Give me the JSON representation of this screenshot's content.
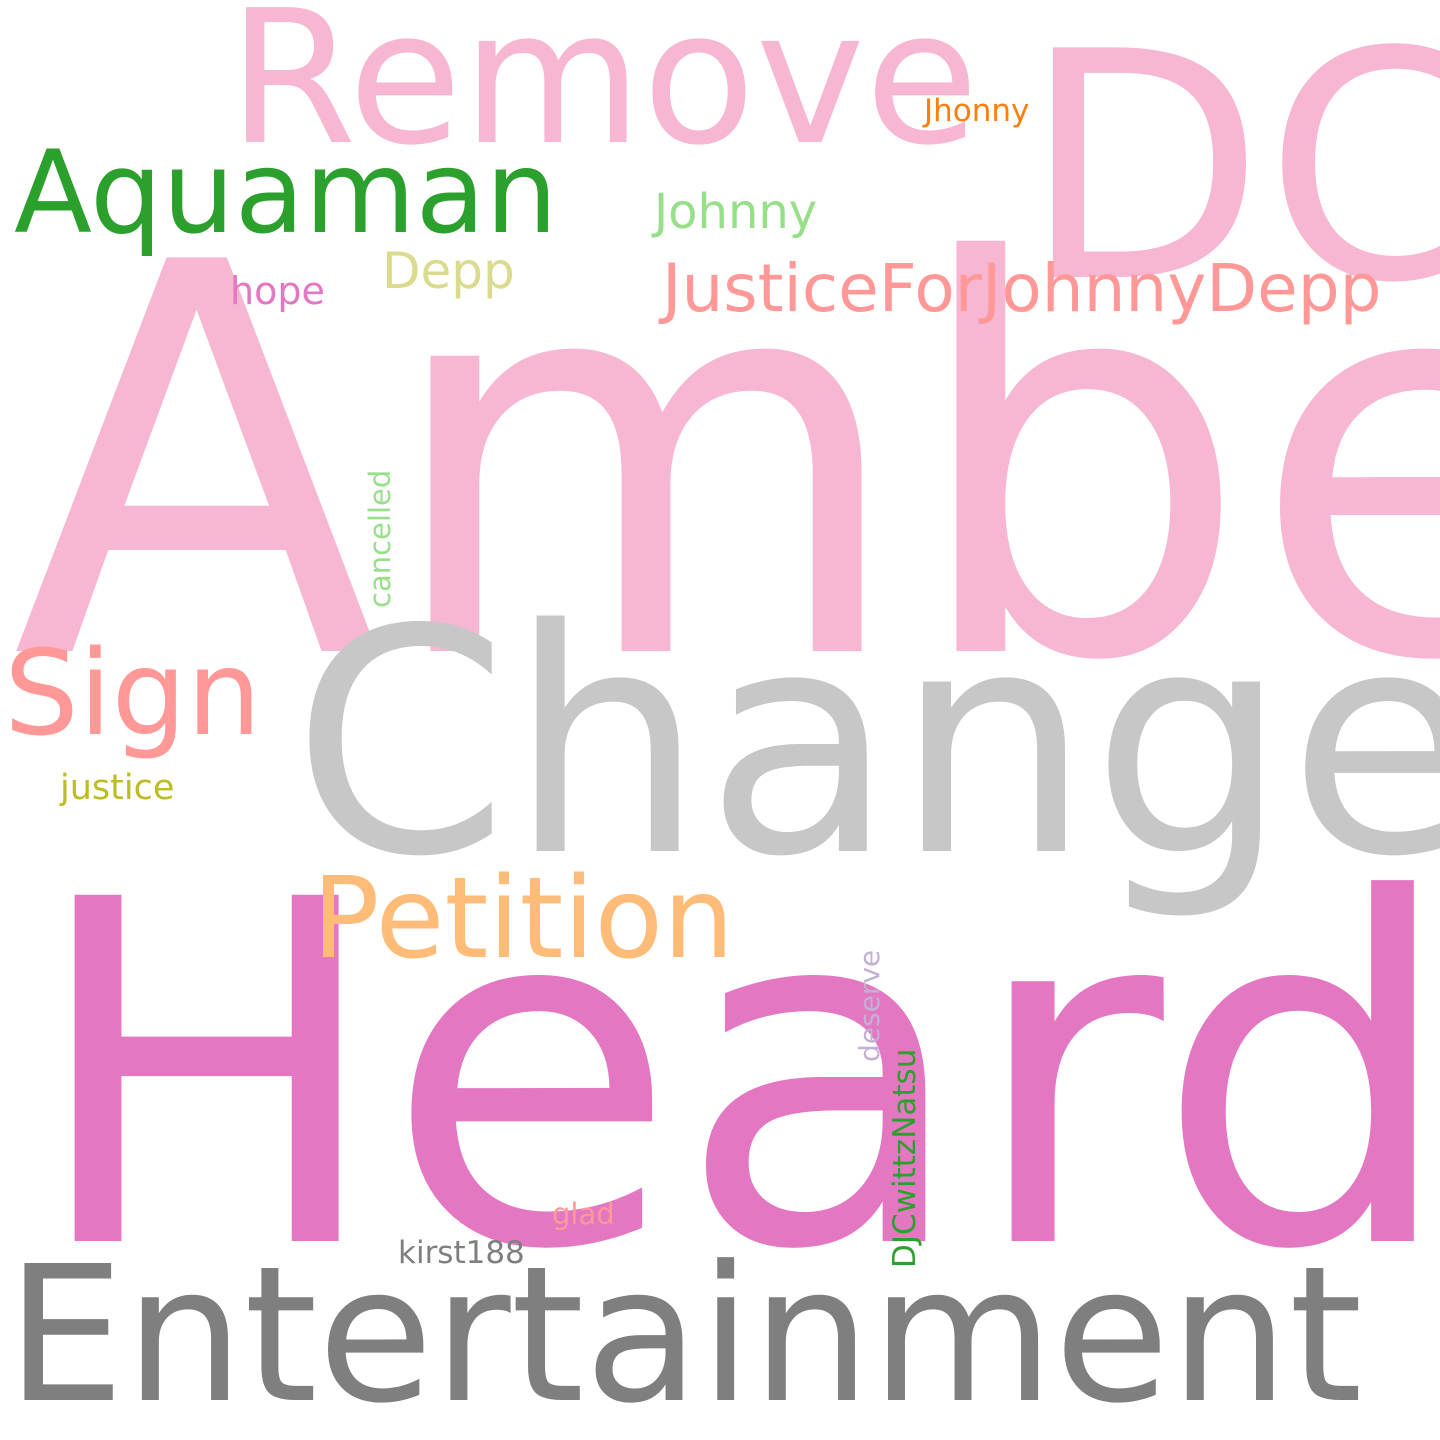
{
  "words": {
    "amber": {
      "text": "Amber",
      "color": "#f7b6d2"
    },
    "heard": {
      "text": "Heard",
      "color": "#e377c2"
    },
    "change": {
      "text": "Change",
      "color": "#c7c7c7"
    },
    "dc": {
      "text": "DC",
      "color": "#f7b6d2"
    },
    "remove": {
      "text": "Remove",
      "color": "#f7b6d2"
    },
    "entertainment": {
      "text": "Entertainment",
      "color": "#7f7f7f"
    },
    "aquaman": {
      "text": "Aquaman",
      "color": "#2ca02c"
    },
    "sign": {
      "text": "Sign",
      "color": "#ff9896"
    },
    "petition": {
      "text": "Petition",
      "color": "#ffbb78"
    },
    "justicefor": {
      "text": "JusticeForJohnnyDepp",
      "color": "#ff9896"
    },
    "johnny": {
      "text": "Johnny",
      "color": "#98df8a"
    },
    "depp": {
      "text": "Depp",
      "color": "#dbdb8d"
    },
    "hope": {
      "text": "hope",
      "color": "#e377c2"
    },
    "jhonny": {
      "text": "Jhonny",
      "color": "#ff7f0e"
    },
    "justice": {
      "text": "justice",
      "color": "#bcbd22"
    },
    "cancelled": {
      "text": "cancelled",
      "color": "#98df8a"
    },
    "deserve": {
      "text": "deserve",
      "color": "#c5b0d5"
    },
    "djcwittznatsu": {
      "text": "DJCwittzNatsu",
      "color": "#2ca02c"
    },
    "glad": {
      "text": "glad",
      "color": "#ff9896"
    },
    "kirst188": {
      "text": "kirst188",
      "color": "#7f7f7f"
    }
  }
}
